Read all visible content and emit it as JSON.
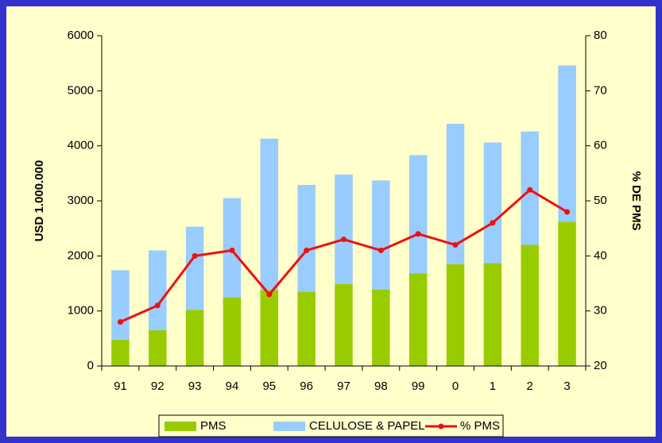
{
  "chart_data": {
    "type": "bar",
    "categories": [
      "91",
      "92",
      "93",
      "94",
      "95",
      "96",
      "97",
      "98",
      "99",
      "0",
      "1",
      "2",
      "3"
    ],
    "series": [
      {
        "name": "PMS",
        "color": "#99cc00",
        "stack": true,
        "values": [
          480,
          650,
          1020,
          1250,
          1380,
          1350,
          1490,
          1390,
          1680,
          1850,
          1870,
          2200,
          2620
        ]
      },
      {
        "name": "CELULOSE & PAPEL",
        "color": "#99ccff",
        "stack": true,
        "values": [
          1260,
          1450,
          1510,
          1800,
          2750,
          1940,
          1990,
          1980,
          2150,
          2550,
          2190,
          2060,
          2840
        ]
      },
      {
        "name": "% PMS",
        "color": "#ee1111",
        "type": "line",
        "axis": "y2",
        "values": [
          28,
          31,
          40,
          41,
          33,
          41,
          43,
          41,
          44,
          42,
          46,
          52,
          48
        ]
      }
    ],
    "ylabel": "USD 1.000.000",
    "y2label": "% DE PMS",
    "ylim": [
      0,
      6000
    ],
    "yticks": [
      0,
      1000,
      2000,
      3000,
      4000,
      5000,
      6000
    ],
    "y2lim": [
      20,
      80
    ],
    "y2ticks": [
      20,
      30,
      40,
      50,
      60,
      70,
      80
    ],
    "legend": "bottom"
  }
}
